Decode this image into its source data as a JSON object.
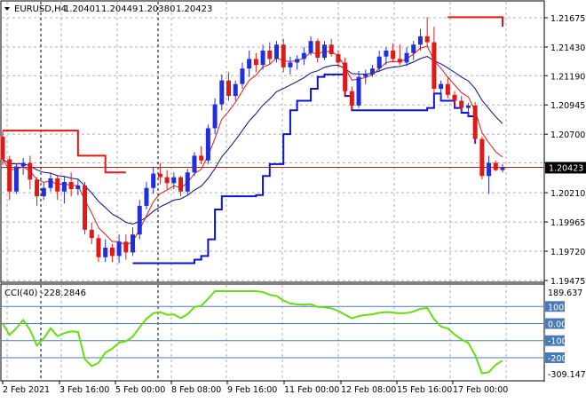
{
  "main_panel": {
    "symbol_label": "EURUSD,H4",
    "ohlc": [
      "1.20401",
      "1.20449",
      "1.20380",
      "1.20423"
    ],
    "price_ticks": [
      "1.21675",
      "1.21430",
      "1.21190",
      "1.20945",
      "1.20700",
      "1.20460",
      "1.20210",
      "1.19965",
      "1.19720",
      "1.19475"
    ],
    "current_price": "1.20423",
    "price_range": [
      1.19475,
      1.21675
    ]
  },
  "cci_panel": {
    "label": "CCI(40) -228.2846",
    "axis_top": "189.637",
    "axis_bottom": "-309.1477",
    "levels": [
      "100",
      "0.00",
      "-100",
      "-200"
    ],
    "value_range": [
      -309.1477,
      189.637
    ]
  },
  "time_axis": {
    "labels": [
      "2 Feb 2021",
      "3 Feb 16:00",
      "5 Feb 00:00",
      "8 Feb 08:00",
      "9 Feb 16:00",
      "11 Feb 00:00",
      "12 Feb 08:00",
      "15 Feb 16:00",
      "17 Feb 00:00"
    ]
  },
  "colors": {
    "bull_candle": "#1f2fe0",
    "bear_candle": "#e01818",
    "fast_ma": "#e01818",
    "slow_ma": "#0a0a8a",
    "support_line": "#0a14d0",
    "resistance_line": "#e01818",
    "cci_line": "#66dd11",
    "level_line": "#4a7ab8",
    "current_price_line": "#b02020"
  },
  "chart_data": {
    "type": "candlestick",
    "timeframe": "H4",
    "ohlc": [
      [
        1.2068,
        1.2073,
        1.2044,
        1.2049
      ],
      [
        1.2049,
        1.2052,
        1.2015,
        1.2022
      ],
      [
        1.2022,
        1.2046,
        1.202,
        1.2043
      ],
      [
        1.2043,
        1.205,
        1.2036,
        1.2046
      ],
      [
        1.2046,
        1.2052,
        1.2024,
        1.2032
      ],
      [
        1.2032,
        1.2034,
        1.201,
        1.2018
      ],
      [
        1.2018,
        1.203,
        1.2015,
        1.2025
      ],
      [
        1.2025,
        1.2038,
        1.2022,
        1.2033
      ],
      [
        1.2033,
        1.2035,
        1.2015,
        1.2022
      ],
      [
        1.2022,
        1.2035,
        1.2012,
        1.203
      ],
      [
        1.203,
        1.2038,
        1.2018,
        1.2024
      ],
      [
        1.2024,
        1.2032,
        1.2019,
        1.2027
      ],
      [
        1.2027,
        1.203,
        1.1986,
        1.199
      ],
      [
        1.199,
        1.1996,
        1.1978,
        1.1983
      ],
      [
        1.1983,
        1.1986,
        1.1963,
        1.1967
      ],
      [
        1.1967,
        1.1982,
        1.1963,
        1.1975
      ],
      [
        1.1975,
        1.1978,
        1.1963,
        1.1968
      ],
      [
        1.1968,
        1.1986,
        1.1962,
        1.198
      ],
      [
        1.198,
        1.1986,
        1.1965,
        1.1971
      ],
      [
        1.1971,
        1.1992,
        1.1968,
        1.1986
      ],
      [
        1.1986,
        1.2015,
        1.1982,
        1.201
      ],
      [
        1.201,
        1.203,
        1.2007,
        1.2025
      ],
      [
        1.2025,
        1.2042,
        1.202,
        1.2037
      ],
      [
        1.2037,
        1.2046,
        1.2028,
        1.2034
      ],
      [
        1.2034,
        1.204,
        1.2024,
        1.2029
      ],
      [
        1.2029,
        1.2038,
        1.2024,
        1.2034
      ],
      [
        1.2034,
        1.2035,
        1.2018,
        1.2022
      ],
      [
        1.2022,
        1.2041,
        1.2019,
        1.2038
      ],
      [
        1.2038,
        1.2055,
        1.2035,
        1.2052
      ],
      [
        1.2052,
        1.206,
        1.2045,
        1.2048
      ],
      [
        1.2048,
        1.2078,
        1.2045,
        1.2075
      ],
      [
        1.2075,
        1.21,
        1.207,
        1.2095
      ],
      [
        1.2095,
        1.212,
        1.209,
        1.2115
      ],
      [
        1.2115,
        1.2122,
        1.2098,
        1.2102
      ],
      [
        1.2102,
        1.2115,
        1.2098,
        1.2112
      ],
      [
        1.2112,
        1.213,
        1.2108,
        1.2125
      ],
      [
        1.2125,
        1.214,
        1.2118,
        1.2133
      ],
      [
        1.2133,
        1.2138,
        1.2122,
        1.2128
      ],
      [
        1.2128,
        1.2145,
        1.2124,
        1.214
      ],
      [
        1.214,
        1.2147,
        1.2128,
        1.2133
      ],
      [
        1.2133,
        1.2148,
        1.213,
        1.2145
      ],
      [
        1.2145,
        1.215,
        1.2122,
        1.2126
      ],
      [
        1.2126,
        1.2135,
        1.212,
        1.213
      ],
      [
        1.213,
        1.2136,
        1.2124,
        1.2133
      ],
      [
        1.2133,
        1.2143,
        1.2128,
        1.2138
      ],
      [
        1.2138,
        1.2152,
        1.2136,
        1.2148
      ],
      [
        1.2148,
        1.215,
        1.213,
        1.2134
      ],
      [
        1.2134,
        1.2148,
        1.2132,
        1.2145
      ],
      [
        1.2145,
        1.215,
        1.2135,
        1.2137
      ],
      [
        1.2137,
        1.214,
        1.2126,
        1.213
      ],
      [
        1.213,
        1.2134,
        1.2102,
        1.2106
      ],
      [
        1.2106,
        1.211,
        1.209,
        1.2094
      ],
      [
        1.2094,
        1.2123,
        1.2092,
        1.2118
      ],
      [
        1.2118,
        1.2124,
        1.2112,
        1.212
      ],
      [
        1.212,
        1.2128,
        1.2118,
        1.2125
      ],
      [
        1.2125,
        1.214,
        1.2122,
        1.2135
      ],
      [
        1.2135,
        1.2143,
        1.2128,
        1.214
      ],
      [
        1.214,
        1.2146,
        1.213,
        1.2133
      ],
      [
        1.2133,
        1.2145,
        1.2128,
        1.213
      ],
      [
        1.213,
        1.2143,
        1.2127,
        1.2138
      ],
      [
        1.2138,
        1.2148,
        1.2132,
        1.2145
      ],
      [
        1.2145,
        1.2158,
        1.214,
        1.2152
      ],
      [
        1.2152,
        1.2168,
        1.2143,
        1.2147
      ],
      [
        1.2147,
        1.216,
        1.2104,
        1.2108
      ],
      [
        1.2108,
        1.2115,
        1.2098,
        1.2112
      ],
      [
        1.2112,
        1.2118,
        1.21,
        1.2103
      ],
      [
        1.2103,
        1.2106,
        1.2092,
        1.2098
      ],
      [
        1.2098,
        1.2102,
        1.2088,
        1.2092
      ],
      [
        1.2092,
        1.2096,
        1.2085,
        1.2094
      ],
      [
        1.2094,
        1.2097,
        1.2062,
        1.2066
      ],
      [
        1.2066,
        1.2068,
        1.2032,
        1.2035
      ],
      [
        1.2035,
        1.2052,
        1.202,
        1.2046
      ],
      [
        1.2046,
        1.2048,
        1.2039,
        1.204
      ],
      [
        1.204,
        1.2045,
        1.2038,
        1.2042
      ]
    ]
  }
}
